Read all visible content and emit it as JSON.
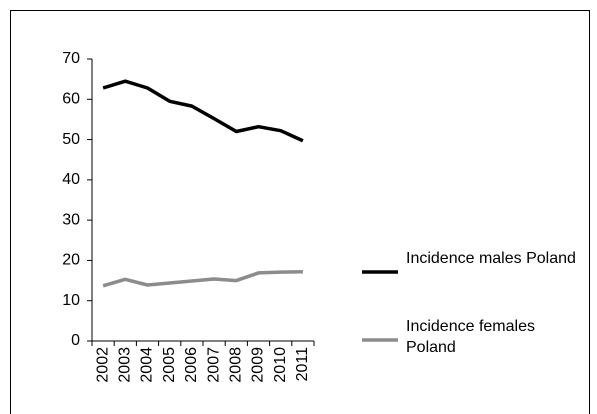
{
  "chart_data": {
    "type": "line",
    "categories": [
      "2002",
      "2003",
      "2004",
      "2005",
      "2006",
      "2007",
      "2008",
      "2009",
      "2010",
      "2011"
    ],
    "series": [
      {
        "name": "Incidence males Poland",
        "color": "#000000",
        "values": [
          62.8,
          64.5,
          62.8,
          59.5,
          58.3,
          55.2,
          52.0,
          53.2,
          52.2,
          49.7
        ]
      },
      {
        "name": "Incidence females Poland",
        "color": "#8c8c8c",
        "values": [
          13.7,
          15.3,
          13.9,
          14.4,
          14.9,
          15.4,
          15.0,
          16.9,
          17.1,
          17.2
        ]
      }
    ],
    "ylim": [
      0,
      70
    ],
    "yticks": [
      0,
      10,
      20,
      30,
      40,
      50,
      60,
      70
    ],
    "grid": false,
    "legend": "right"
  }
}
